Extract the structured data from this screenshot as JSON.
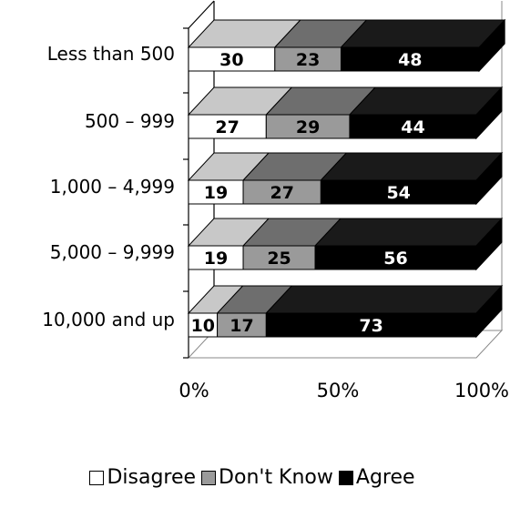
{
  "chart_data": {
    "type": "bar",
    "orientation": "horizontal",
    "stacked": true,
    "percent_stacked": true,
    "three_d": true,
    "categories": [
      "Less than 500",
      "500 – 999",
      "1,000 – 4,999",
      "5,000 – 9,999",
      "10,000 and up"
    ],
    "series": [
      {
        "name": "Disagree",
        "values": [
          30,
          27,
          19,
          19,
          10
        ],
        "color": "#ffffff",
        "top_color": "#c8c8c8",
        "label_color": "#000000"
      },
      {
        "name": "Don't Know",
        "values": [
          23,
          29,
          27,
          25,
          17
        ],
        "color": "#9a9a9a",
        "top_color": "#6e6e6e",
        "label_color": "#000000"
      },
      {
        "name": "Agree",
        "values": [
          48,
          44,
          54,
          56,
          73
        ],
        "color": "#000000",
        "top_color": "#1a1a1a",
        "label_color": "#ffffff"
      }
    ],
    "x_tick_labels": [
      "0%",
      "50%",
      "100%"
    ],
    "xlim": [
      0,
      100
    ],
    "grid": false,
    "legend_position": "bottom"
  }
}
